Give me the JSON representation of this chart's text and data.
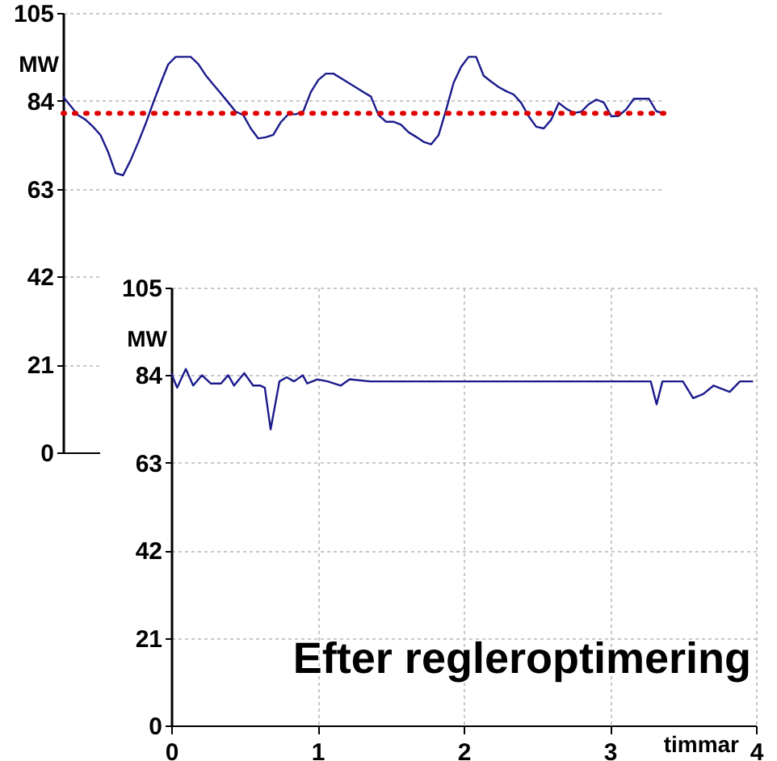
{
  "chart_data": [
    {
      "type": "line",
      "ylabel": "MW",
      "ylim": [
        0,
        105
      ],
      "yticks": [
        0,
        21,
        42,
        63,
        84,
        105
      ],
      "grid": "y",
      "tick_labels": "y",
      "categories": [
        null,
        null,
        null,
        null,
        null,
        null,
        null,
        null,
        null,
        null,
        null,
        null,
        null,
        null,
        null,
        null,
        null,
        null,
        null,
        null,
        null,
        null,
        null,
        null,
        null,
        null,
        null,
        null,
        null,
        null,
        null,
        null,
        null,
        null,
        null,
        null,
        null,
        null,
        null,
        null,
        null,
        null,
        null,
        null,
        null,
        null,
        null,
        null,
        null,
        null,
        null,
        null,
        null,
        null,
        null,
        null,
        null,
        null,
        null,
        null,
        null,
        null,
        null,
        null,
        null,
        null,
        null,
        null,
        null,
        null,
        null,
        null,
        null,
        null,
        null,
        null,
        null,
        null,
        null,
        null,
        null
      ],
      "series": [
        {
          "color": "#1a1a8c",
          "values": [
            85,
            82.8,
            80.6,
            79.5,
            77.8,
            75.8,
            71.8,
            66.7,
            66.2,
            69.8,
            74,
            78.5,
            83.5,
            88.2,
            92.7,
            94.5,
            94.5,
            94.5,
            92.8,
            90.1,
            87.9,
            85.8,
            83.6,
            81.4,
            80.6,
            77.4,
            75,
            75.3,
            75.9,
            78.9,
            80.8,
            80.8,
            81.5,
            86.1,
            89,
            90.5,
            90.5,
            89.4,
            88.3,
            87.2,
            86.1,
            85,
            80.6,
            79,
            79,
            78.3,
            76.5,
            75.4,
            74.2,
            73.6,
            75.8,
            81.8,
            88.3,
            92.1,
            94.5,
            94.5,
            90,
            88.6,
            87.3,
            86.3,
            85.5,
            83.5,
            80.3,
            77.8,
            77.4,
            79.5,
            83.5,
            82.1,
            81.1,
            81.4,
            83.2,
            84.3,
            83.6,
            80.3,
            80.4,
            82,
            84.5,
            84.5,
            84.5,
            81.5,
            81
          ]
        }
      ],
      "ref_lines": [
        {
          "axis": "y",
          "value": 81,
          "color": "#e00000",
          "line_style": "dotted"
        }
      ]
    },
    {
      "type": "line",
      "ylabel": "MW",
      "xlabel": "timmar",
      "xlim": [
        0,
        4
      ],
      "xticks": [
        0,
        1,
        2,
        3,
        4
      ],
      "ylim": [
        0,
        105
      ],
      "yticks": [
        0,
        21,
        42,
        63,
        84,
        105
      ],
      "grid": true,
      "x": [
        0,
        0.04,
        0.1,
        0.15,
        0.21,
        0.27,
        0.34,
        0.39,
        0.43,
        0.5,
        0.56,
        0.61,
        0.64,
        0.68,
        0.74,
        0.79,
        0.84,
        0.9,
        0.93,
        1.0,
        1.07,
        1.16,
        1.22,
        1.36,
        1.6,
        2.0,
        2.4,
        2.8,
        3.1,
        3.28,
        3.32,
        3.36,
        3.5,
        3.57,
        3.64,
        3.71,
        3.82,
        3.89,
        3.98
      ],
      "series": [
        {
          "color": "#1a1a8c",
          "values": [
            84.5,
            81,
            85.5,
            81.5,
            84,
            82,
            82,
            84,
            81.5,
            84.5,
            81.5,
            81.5,
            81,
            71,
            82.5,
            83.5,
            82.5,
            84,
            82,
            83,
            82.5,
            81.5,
            83,
            82.5,
            82.5,
            82.5,
            82.5,
            82.5,
            82.5,
            82.5,
            77,
            82.5,
            82.5,
            78.5,
            79.5,
            81.5,
            80,
            82.5,
            82.5
          ]
        }
      ],
      "annotations": [
        "Efter regleroptimering"
      ]
    }
  ]
}
